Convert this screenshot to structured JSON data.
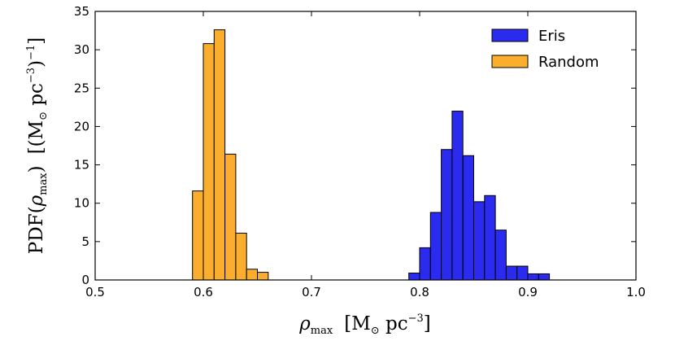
{
  "chart_data": {
    "type": "bar",
    "subtype": "histogram",
    "title": "",
    "xlabel": "ρmax  [M⊙ pc⁻³]",
    "xlabel_parts": {
      "symbol": "ρ",
      "symbol_sub": "max",
      "unit_open": "[M",
      "unit_sub": "⊙",
      "unit_mid": " pc",
      "unit_sup": "−3",
      "unit_close": "]"
    },
    "ylabel": "PDF(ρmax)  [(M⊙ pc⁻³)⁻¹]",
    "ylabel_parts": {
      "func": "PDF(",
      "symbol": "ρ",
      "symbol_sub": "max",
      "func_close": ")",
      "unit_open": "[(M",
      "unit_sub": "⊙",
      "unit_mid": " pc",
      "unit_sup": "−3",
      "unit_close": ")",
      "unit_sup2": "−1",
      "unit_end": "]"
    },
    "xlim": [
      0.5,
      1.0
    ],
    "ylim": [
      0,
      35
    ],
    "xticks": [
      0.5,
      0.6,
      0.7,
      0.8,
      0.9,
      1.0
    ],
    "xtick_labels": [
      "0.5",
      "0.6",
      "0.7",
      "0.8",
      "0.9",
      "1.0"
    ],
    "yticks": [
      0,
      5,
      10,
      15,
      20,
      25,
      30,
      35
    ],
    "ytick_labels": [
      "0",
      "5",
      "10",
      "15",
      "20",
      "25",
      "30",
      "35"
    ],
    "grid": false,
    "legend_position": "top-right",
    "series": [
      {
        "name": "Eris",
        "color": "#2b2bf0",
        "bin_width": 0.01,
        "bin_starts": [
          0.79,
          0.8,
          0.81,
          0.82,
          0.83,
          0.84,
          0.85,
          0.86,
          0.87,
          0.88,
          0.89,
          0.9,
          0.91
        ],
        "values": [
          0.9,
          4.2,
          8.8,
          17.0,
          22.0,
          16.2,
          10.2,
          11.0,
          6.5,
          1.8,
          1.8,
          0.8,
          0.8
        ]
      },
      {
        "name": "Random",
        "color": "#fbae2d",
        "bin_width": 0.01,
        "bin_starts": [
          0.59,
          0.6,
          0.61,
          0.62,
          0.63,
          0.64,
          0.65
        ],
        "values": [
          11.6,
          30.8,
          32.6,
          16.4,
          6.1,
          1.4,
          1.0
        ]
      }
    ]
  }
}
